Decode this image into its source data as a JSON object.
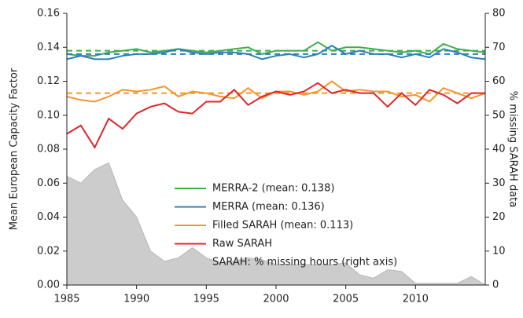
{
  "chart_data": {
    "type": "line",
    "ylabel": "Mean European Capacity Factor",
    "y2label": "% missing SARAH data",
    "x": [
      1985,
      1986,
      1987,
      1988,
      1989,
      1990,
      1991,
      1992,
      1993,
      1994,
      1995,
      1996,
      1997,
      1998,
      1999,
      2000,
      2001,
      2002,
      2003,
      2004,
      2005,
      2006,
      2007,
      2008,
      2009,
      2010,
      2011,
      2012,
      2013,
      2014,
      2015
    ],
    "xlim": [
      1985,
      2015
    ],
    "xticks": [
      1985,
      1990,
      1995,
      2000,
      2005,
      2010
    ],
    "ylim": [
      0,
      0.16
    ],
    "yticks": [
      {
        "value": 0,
        "label": "0.00"
      },
      {
        "value": 0.02,
        "label": "0.02"
      },
      {
        "value": 0.04,
        "label": "0.04"
      },
      {
        "value": 0.06,
        "label": "0.06"
      },
      {
        "value": 0.08,
        "label": "0.08"
      },
      {
        "value": 0.1,
        "label": "0.10"
      },
      {
        "value": 0.12,
        "label": "0.12"
      },
      {
        "value": 0.14,
        "label": "0.14"
      },
      {
        "value": 0.16,
        "label": "0.16"
      }
    ],
    "y2lim": [
      0,
      80
    ],
    "y2ticks": [
      0,
      10,
      20,
      30,
      40,
      50,
      60,
      70,
      80
    ],
    "series": [
      {
        "name": "SARAH: % missing hours (right axis)",
        "color": "#cccccc",
        "axis": "y2",
        "kind": "area",
        "values": [
          32,
          30,
          34,
          36,
          25,
          20,
          10,
          7,
          8,
          11,
          8,
          6.5,
          7,
          8,
          7.5,
          6,
          6,
          6,
          6,
          6,
          6.5,
          3,
          2,
          4.5,
          4,
          0.5,
          0.5,
          0.5,
          0.5,
          2.5,
          0
        ]
      },
      {
        "name": "MERRA-2 (mean: 0.138)",
        "color": "#3fae49",
        "mean": 0.138,
        "values": [
          0.136,
          0.135,
          0.135,
          0.137,
          0.138,
          0.139,
          0.137,
          0.138,
          0.139,
          0.138,
          0.137,
          0.138,
          0.139,
          0.14,
          0.136,
          0.138,
          0.138,
          0.138,
          0.143,
          0.138,
          0.14,
          0.14,
          0.139,
          0.138,
          0.137,
          0.138,
          0.136,
          0.142,
          0.139,
          0.138,
          0.137
        ]
      },
      {
        "name": "MERRA (mean: 0.136)",
        "color": "#2e7ebc",
        "mean": 0.136,
        "values": [
          0.133,
          0.135,
          0.133,
          0.133,
          0.135,
          0.136,
          0.136,
          0.137,
          0.139,
          0.137,
          0.136,
          0.137,
          0.137,
          0.136,
          0.133,
          0.135,
          0.136,
          0.134,
          0.136,
          0.141,
          0.136,
          0.138,
          0.136,
          0.136,
          0.134,
          0.136,
          0.134,
          0.139,
          0.137,
          0.134,
          0.133
        ]
      },
      {
        "name": "Filled SARAH (mean: 0.113)",
        "color": "#f5962a",
        "mean": 0.113,
        "values": [
          0.111,
          0.109,
          0.108,
          0.111,
          0.115,
          0.114,
          0.115,
          0.117,
          0.111,
          0.114,
          0.113,
          0.111,
          0.11,
          0.116,
          0.11,
          0.114,
          0.114,
          0.112,
          0.114,
          0.12,
          0.114,
          0.115,
          0.114,
          0.114,
          0.111,
          0.112,
          0.108,
          0.116,
          0.113,
          0.11,
          0.113
        ]
      },
      {
        "name": "Raw SARAH",
        "color": "#e0262a",
        "values": [
          0.089,
          0.094,
          0.081,
          0.098,
          0.092,
          0.101,
          0.105,
          0.107,
          0.102,
          0.101,
          0.108,
          0.108,
          0.115,
          0.106,
          0.111,
          0.114,
          0.112,
          0.114,
          0.119,
          0.113,
          0.115,
          0.113,
          0.113,
          0.105,
          0.113,
          0.106,
          0.115,
          0.112,
          0.107,
          0.113,
          0.113
        ]
      }
    ],
    "legend_order": [
      1,
      2,
      3,
      4,
      0
    ]
  }
}
